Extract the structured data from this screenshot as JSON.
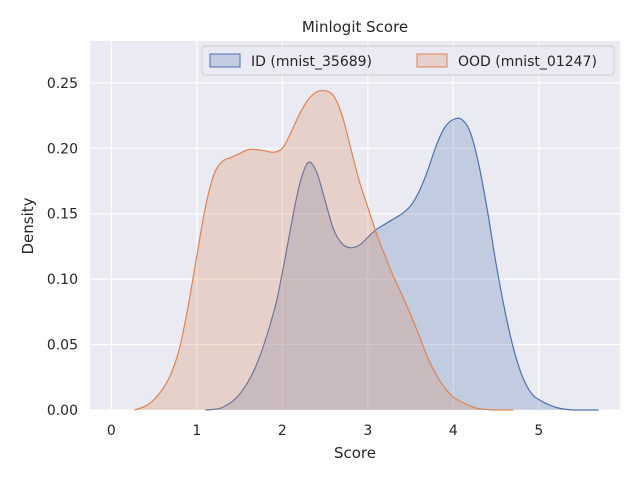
{
  "chart_data": {
    "type": "area",
    "title": "Minlogit Score",
    "xlabel": "Score",
    "ylabel": "Density",
    "xlim": [
      -0.25,
      5.95
    ],
    "ylim": [
      0,
      0.282
    ],
    "x_ticks": [
      0,
      1,
      2,
      3,
      4,
      5
    ],
    "x_tick_labels": [
      "0",
      "1",
      "2",
      "3",
      "4",
      "5"
    ],
    "y_ticks": [
      0,
      0.05,
      0.1,
      0.15,
      0.2,
      0.25
    ],
    "y_tick_labels": [
      "0.00",
      "0.05",
      "0.10",
      "0.15",
      "0.20",
      "0.25"
    ],
    "grid": true,
    "legend_position": "top-right",
    "series": [
      {
        "name": "ID (mnist_35689)",
        "color": "#4c72b0",
        "x": [
          1.1,
          1.3,
          1.5,
          1.7,
          1.9,
          2.0,
          2.1,
          2.2,
          2.3,
          2.4,
          2.5,
          2.6,
          2.7,
          2.8,
          2.9,
          3.0,
          3.1,
          3.2,
          3.3,
          3.4,
          3.5,
          3.6,
          3.7,
          3.8,
          3.9,
          4.0,
          4.1,
          4.2,
          4.3,
          4.4,
          4.5,
          4.6,
          4.7,
          4.8,
          4.9,
          5.0,
          5.2,
          5.4,
          5.7
        ],
        "y": [
          0.0,
          0.002,
          0.012,
          0.035,
          0.075,
          0.105,
          0.14,
          0.172,
          0.189,
          0.182,
          0.16,
          0.138,
          0.127,
          0.124,
          0.126,
          0.132,
          0.138,
          0.142,
          0.146,
          0.15,
          0.156,
          0.167,
          0.183,
          0.202,
          0.216,
          0.222,
          0.222,
          0.212,
          0.187,
          0.152,
          0.112,
          0.077,
          0.048,
          0.027,
          0.014,
          0.008,
          0.002,
          0.0,
          0.0
        ]
      },
      {
        "name": "OOD (mnist_01247)",
        "color": "#dd8452",
        "x": [
          0.27,
          0.4,
          0.5,
          0.6,
          0.7,
          0.8,
          0.9,
          1.0,
          1.1,
          1.2,
          1.3,
          1.4,
          1.5,
          1.6,
          1.7,
          1.8,
          1.9,
          2.0,
          2.1,
          2.2,
          2.3,
          2.4,
          2.5,
          2.6,
          2.7,
          2.8,
          2.9,
          3.0,
          3.1,
          3.2,
          3.3,
          3.4,
          3.5,
          3.6,
          3.7,
          3.8,
          3.9,
          4.0,
          4.1,
          4.2,
          4.3,
          4.5,
          4.7
        ],
        "y": [
          0.0,
          0.003,
          0.008,
          0.016,
          0.028,
          0.048,
          0.08,
          0.118,
          0.155,
          0.18,
          0.19,
          0.193,
          0.196,
          0.199,
          0.199,
          0.198,
          0.197,
          0.2,
          0.212,
          0.226,
          0.237,
          0.243,
          0.244,
          0.24,
          0.225,
          0.2,
          0.175,
          0.155,
          0.135,
          0.118,
          0.102,
          0.088,
          0.073,
          0.057,
          0.04,
          0.027,
          0.017,
          0.01,
          0.006,
          0.003,
          0.001,
          0.0,
          0.0
        ]
      }
    ]
  }
}
